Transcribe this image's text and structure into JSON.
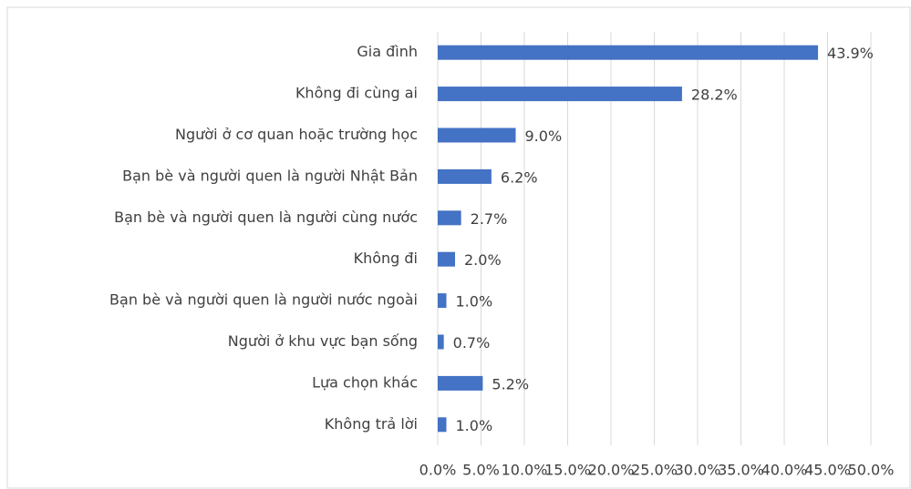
{
  "chart_data": {
    "type": "bar",
    "orientation": "horizontal",
    "categories": [
      "Gia đình",
      "Không đi cùng ai",
      "Người ở cơ quan hoặc trường học",
      "Bạn bè và người quen là người Nhật Bản",
      "Bạn bè và người quen là người cùng nước",
      "Không đi",
      "Bạn bè và người quen là người nước ngoài",
      "Người ở khu vực bạn sống",
      "Lựa chọn khác",
      "Không trả lời"
    ],
    "values": [
      43.9,
      28.2,
      9.0,
      6.2,
      2.7,
      2.0,
      1.0,
      0.7,
      5.2,
      1.0
    ],
    "value_labels": [
      "43.9%",
      "28.2%",
      "9.0%",
      "6.2%",
      "2.7%",
      "2.0%",
      "1.0%",
      "0.7%",
      "5.2%",
      "1.0%"
    ],
    "color": "#4472c4",
    "xlim": [
      0,
      50
    ],
    "xticks": [
      {
        "value": 0,
        "label": "0.0%"
      },
      {
        "value": 5,
        "label": "5.0%"
      },
      {
        "value": 10,
        "label": "10.0%"
      },
      {
        "value": 15,
        "label": "15.0%"
      },
      {
        "value": 20,
        "label": "20.0%"
      },
      {
        "value": 25,
        "label": "25.0%"
      },
      {
        "value": 30,
        "label": "30.0%"
      },
      {
        "value": 35,
        "label": "35.0%"
      },
      {
        "value": 40,
        "label": "40.0%"
      },
      {
        "value": 45,
        "label": "45.0%"
      },
      {
        "value": 50,
        "label": "50.0%"
      }
    ],
    "grid": true
  }
}
